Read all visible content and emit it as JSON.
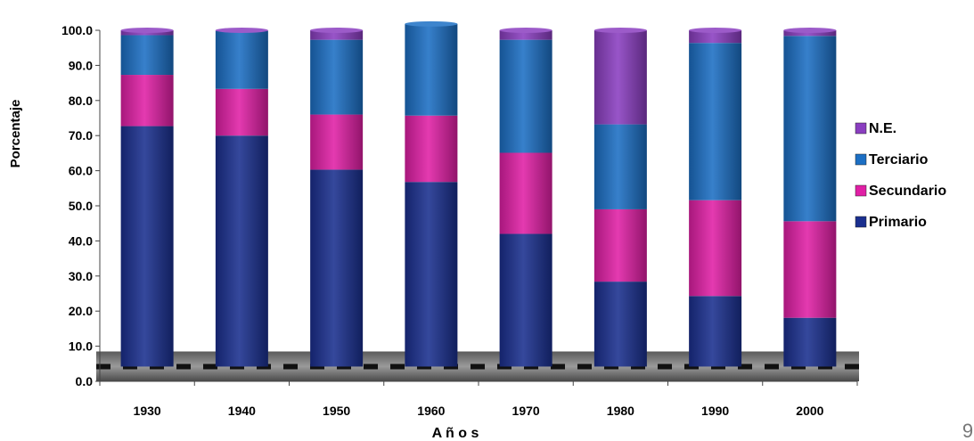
{
  "chart_data": {
    "type": "bar",
    "stacked": true,
    "categories": [
      "1930",
      "1940",
      "1950",
      "1960",
      "1970",
      "1980",
      "1990",
      "2000"
    ],
    "series": [
      {
        "name": "Primario",
        "color": "#1a2f8f",
        "values": [
          72.7,
          70.0,
          60.3,
          56.8,
          42.0,
          28.4,
          24.3,
          18.1
        ]
      },
      {
        "name": "Secundario",
        "color": "#e01fa5",
        "values": [
          14.6,
          13.3,
          15.7,
          18.9,
          23.1,
          20.6,
          27.3,
          27.5
        ]
      },
      {
        "name": "Terciario",
        "color": "#1c6fc4",
        "values": [
          11.3,
          16.5,
          21.3,
          26.1,
          32.2,
          24.2,
          44.8,
          52.8
        ]
      },
      {
        "name": "N.E.",
        "color": "#8a3ec0",
        "values": [
          1.4,
          0.2,
          2.7,
          0,
          2.7,
          26.8,
          3.6,
          1.6
        ]
      }
    ],
    "legend_order": [
      "N.E.",
      "Terciario",
      "Secundario",
      "Primario"
    ],
    "xlabel": "A ñ o s",
    "ylabel": "Porcentaje",
    "ylim": [
      0,
      100
    ],
    "yticks": [
      "0.0",
      "10.0",
      "20.0",
      "30.0",
      "40.0",
      "50.0",
      "60.0",
      "70.0",
      "80.0",
      "90.0",
      "100.0"
    ],
    "grid": false,
    "legend_position": "right"
  },
  "page_number": "9"
}
